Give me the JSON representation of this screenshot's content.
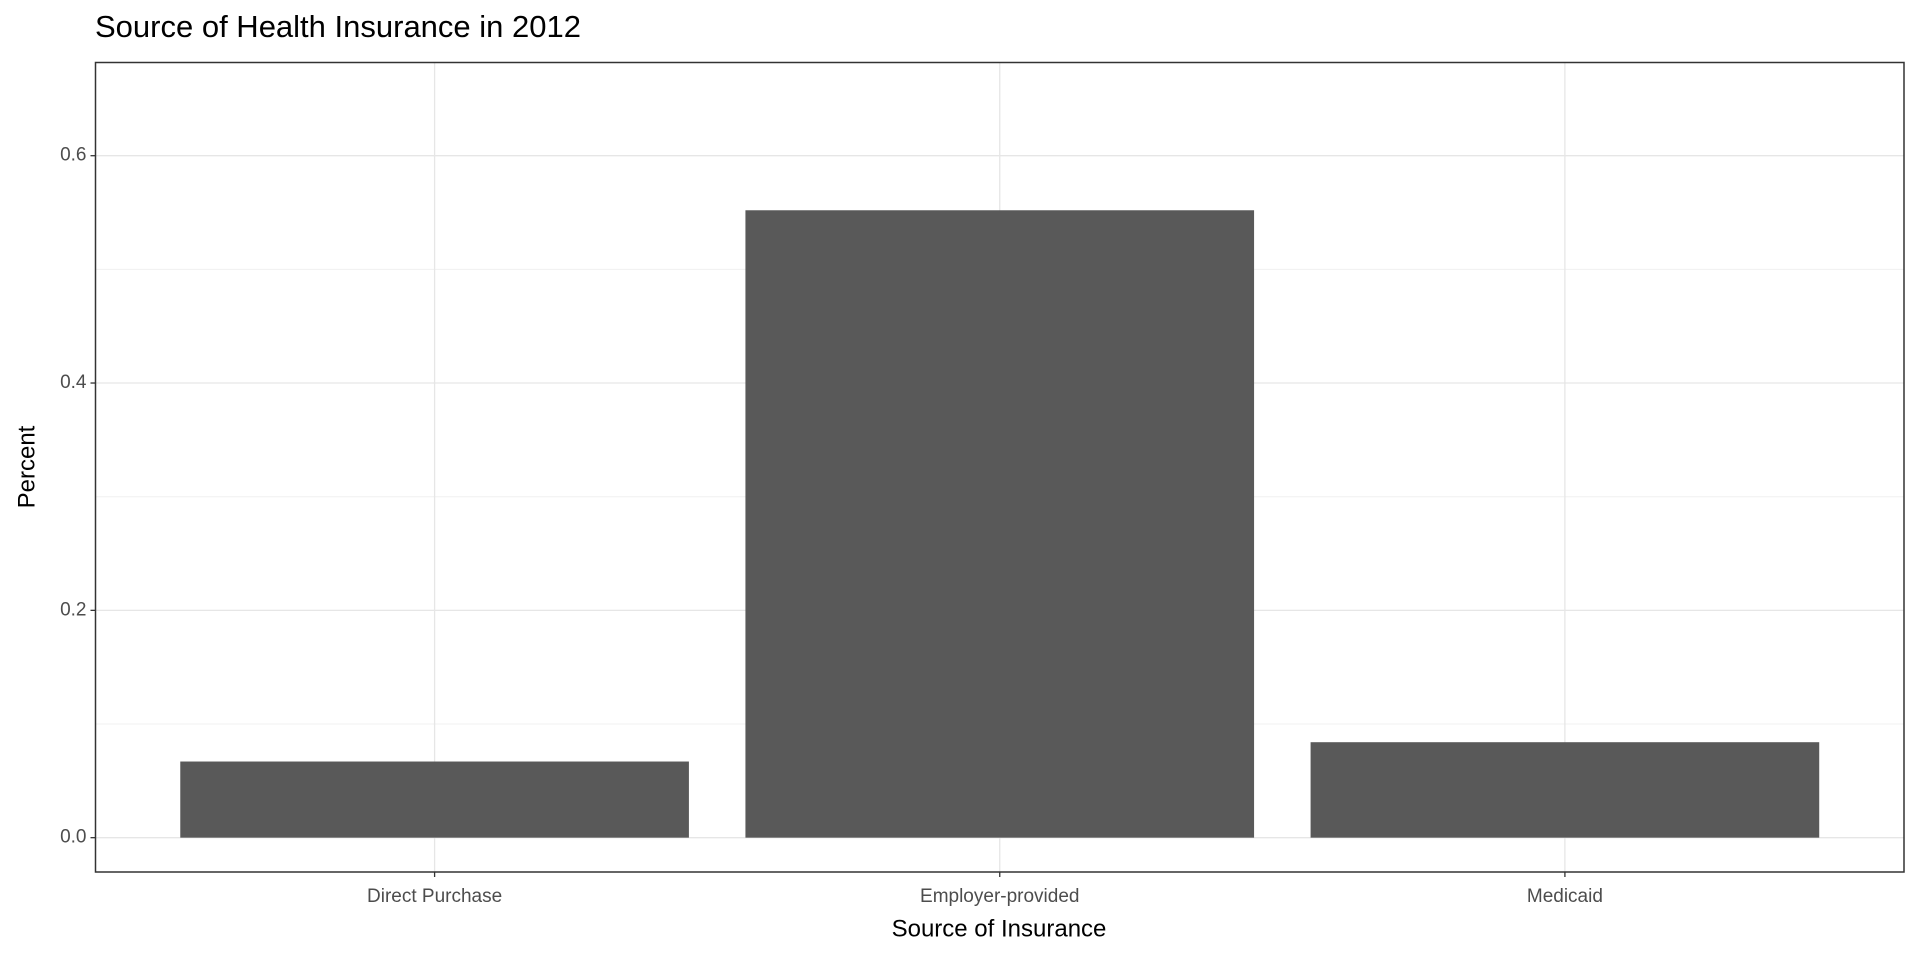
{
  "chart_data": {
    "type": "bar",
    "title": "Source of Health Insurance in 2012",
    "x_label": "Source of Insurance",
    "y_label": "Percent",
    "categories": [
      "Direct Purchase",
      "Employer-provided",
      "Medicaid"
    ],
    "values": [
      0.067,
      0.552,
      0.084
    ],
    "color": "#595959",
    "ylim": [
      -0.0302,
      0.682
    ],
    "yticks": [
      {
        "value": 0,
        "label": "0.0"
      },
      0.2,
      0.4,
      0.6
    ],
    "minor_yticks": [
      0.1,
      0.3,
      0.5
    ],
    "grid": true
  }
}
